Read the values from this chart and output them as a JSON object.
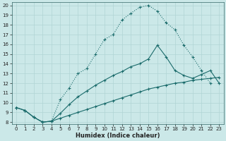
{
  "xlabel": "Humidex (Indice chaleur)",
  "bg_color": "#cbe8e8",
  "line_color": "#1a6b6b",
  "grid_color": "#b0d4d4",
  "xlim": [
    -0.5,
    23.5
  ],
  "ylim": [
    7.8,
    20.3
  ],
  "xticks": [
    0,
    1,
    2,
    3,
    4,
    5,
    6,
    7,
    8,
    9,
    10,
    11,
    12,
    13,
    14,
    15,
    16,
    17,
    18,
    19,
    20,
    21,
    22,
    23
  ],
  "yticks": [
    8,
    9,
    10,
    11,
    12,
    13,
    14,
    15,
    16,
    17,
    18,
    19,
    20
  ],
  "c1x": [
    0,
    1,
    2,
    3,
    4,
    5,
    6,
    7,
    8,
    9,
    10,
    11,
    12,
    13,
    14,
    15,
    16,
    17,
    18,
    19,
    20,
    21,
    22
  ],
  "c1y": [
    9.5,
    9.2,
    8.5,
    8.0,
    8.1,
    10.3,
    11.5,
    13.0,
    13.5,
    15.0,
    16.5,
    17.0,
    18.5,
    19.2,
    19.8,
    20.0,
    19.4,
    18.2,
    17.5,
    15.9,
    14.7,
    13.3,
    12.0
  ],
  "c2x": [
    0,
    1,
    2,
    3,
    4,
    5,
    6,
    7,
    8,
    9,
    10,
    11,
    12,
    13,
    14,
    15,
    16,
    17,
    18,
    19,
    20,
    21,
    22,
    23
  ],
  "c2y": [
    9.5,
    9.2,
    8.5,
    8.0,
    8.1,
    8.9,
    9.8,
    10.6,
    11.2,
    11.8,
    12.3,
    12.8,
    13.2,
    13.7,
    14.0,
    14.5,
    15.9,
    14.7,
    13.3,
    12.8,
    12.5,
    12.9,
    13.3,
    12.0
  ],
  "c3x": [
    0,
    1,
    2,
    3,
    4,
    5,
    6,
    7,
    8,
    9,
    10,
    11,
    12,
    13,
    14,
    15,
    16,
    17,
    18,
    19,
    20,
    21,
    22,
    23
  ],
  "c3y": [
    9.5,
    9.2,
    8.5,
    8.0,
    8.1,
    8.4,
    8.7,
    9.0,
    9.3,
    9.6,
    9.9,
    10.2,
    10.5,
    10.8,
    11.1,
    11.4,
    11.6,
    11.8,
    12.0,
    12.1,
    12.3,
    12.4,
    12.5,
    12.6
  ]
}
